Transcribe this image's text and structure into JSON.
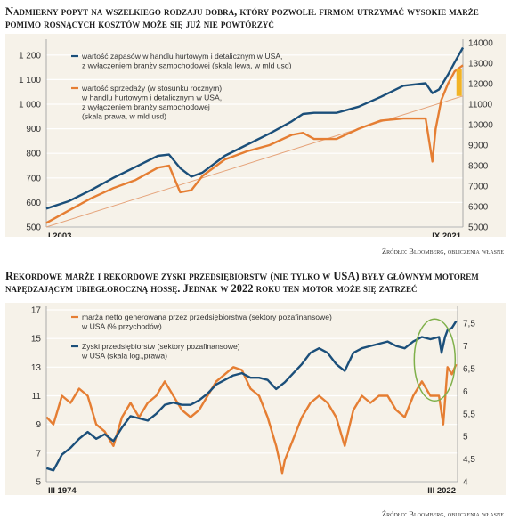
{
  "chart_data": [
    {
      "type": "line",
      "title": "Nadmierny popyt na wszelkiego rodzaju dobra, który pozwolił firmom utrzymać wysokie marże pomimo rosnących kosztów może się już nie powtórzyć",
      "x_start_label": "I 2003",
      "x_end_label": "IX 2021",
      "x_range": [
        2003.0,
        2021.67
      ],
      "y_left_ticks": [
        "500",
        "600",
        "700",
        "800",
        "900",
        "1 000",
        "1 100",
        "1 200"
      ],
      "y_left_range": [
        500,
        1250
      ],
      "y_right_ticks": [
        "5000",
        "6000",
        "7000",
        "8000",
        "9000",
        "10000",
        "11000",
        "12000",
        "13000",
        "14000"
      ],
      "y_right_range": [
        5000,
        14000
      ],
      "source": "Źródło: Bloomberg, obliczenia własne",
      "series": [
        {
          "name": "wartość zapasów w handlu hurtowym i detalicznym w USA, z wyłączeniem branży samochodowej (skala lewa, w mld usd)",
          "legend_lines": [
            "wartość zapasów w handlu hurtowym i detalicznym w USA,",
            "z wyłączeniem branży samochodowej (skala lewa, w mld usd)"
          ],
          "axis": "left",
          "color": "#1b4f7a",
          "x": [
            2003.0,
            2004.0,
            2005.0,
            2006.0,
            2007.0,
            2008.0,
            2008.5,
            2009.0,
            2009.5,
            2010.0,
            2011.0,
            2012.0,
            2013.0,
            2014.0,
            2014.5,
            2015.0,
            2016.0,
            2017.0,
            2018.0,
            2019.0,
            2020.0,
            2020.3,
            2020.6,
            2021.0,
            2021.3,
            2021.67
          ],
          "y": [
            575,
            605,
            650,
            700,
            745,
            790,
            795,
            740,
            705,
            722,
            790,
            835,
            880,
            930,
            960,
            965,
            965,
            990,
            1030,
            1075,
            1085,
            1045,
            1060,
            1120,
            1170,
            1230
          ]
        },
        {
          "name": "wartość sprzedaży (w stosunku rocznym) w handlu hurtowym i detalicznym w USA, z wyłączeniem branży samochodowej (skala prawa, w mld usd)",
          "legend_lines": [
            "wartość sprzedaży (w stosunku rocznym)",
            "w handlu hurtowym i detalicznym w USA,",
            "z wyłączeniem branży samochodowej",
            "(skala prawa, w mld usd)"
          ],
          "axis": "right",
          "color": "#e57e33",
          "x": [
            2003.0,
            2004.0,
            2005.0,
            2006.0,
            2007.0,
            2008.0,
            2008.5,
            2009.0,
            2009.5,
            2010.0,
            2011.0,
            2012.0,
            2013.0,
            2014.0,
            2014.5,
            2015.0,
            2016.0,
            2017.0,
            2018.0,
            2019.0,
            2020.0,
            2020.3,
            2020.45,
            2020.7,
            2021.0,
            2021.3,
            2021.67
          ],
          "y": [
            5200,
            5800,
            6400,
            6900,
            7300,
            7900,
            8000,
            6700,
            6800,
            7500,
            8300,
            8700,
            9000,
            9500,
            9600,
            9300,
            9300,
            9800,
            10200,
            10300,
            10300,
            8200,
            9800,
            11200,
            12000,
            12600,
            12900
          ]
        },
        {
          "name": "trend",
          "axis": "right",
          "color": "#e5a37a",
          "x": [
            2003.0,
            2021.67
          ],
          "y": [
            5000,
            11400
          ]
        }
      ],
      "highlight_bar": {
        "axis": "right",
        "x": 2021.5,
        "y": [
          11400,
          12700
        ],
        "color": "#f2b324"
      }
    },
    {
      "type": "line",
      "title": "Rekordowe marże i rekordowe zyski przedsiębiorstw (nie tylko w USA) były głównym motorem napędzającym ubiegłoroczną hossę. Jednak w 2022 roku ten motor może się zatrzeć",
      "x_start_label": "III 1974",
      "x_end_label": "III 2022",
      "x_range": [
        1974.17,
        2022.17
      ],
      "y_left_ticks": [
        "5",
        "7",
        "9",
        "11",
        "13",
        "15",
        "17"
      ],
      "y_left_range": [
        5,
        17
      ],
      "y_right_ticks": [
        "4",
        "4,5",
        "5",
        "5,5",
        "6",
        "6,5",
        "7",
        "7,5"
      ],
      "y_right_range": [
        4,
        7.8
      ],
      "source": "Źródło: Bloomberg, obliczenia własne",
      "series": [
        {
          "name": "marża netto generowana przez przedsiębiorstwa (sektory pozafinansowe) w USA (% przychodów)",
          "legend_lines": [
            "marża netto generowana przez przedsiębiorstwa (sektory pozafinansowe)",
            "w USA (% przychodów)"
          ],
          "axis": "left",
          "color": "#e57e33",
          "x": [
            1974.2,
            1975.0,
            1976.0,
            1977.0,
            1978.0,
            1979.0,
            1980.0,
            1981.0,
            1982.0,
            1983.0,
            1984.0,
            1985.0,
            1986.0,
            1987.0,
            1988.0,
            1989.0,
            1990.0,
            1991.0,
            1992.0,
            1993.0,
            1994.0,
            1995.0,
            1996.0,
            1997.0,
            1998.0,
            1999.0,
            2000.0,
            2001.0,
            2001.7,
            2002.0,
            2003.0,
            2004.0,
            2005.0,
            2006.0,
            2007.0,
            2008.0,
            2009.0,
            2010.0,
            2011.0,
            2012.0,
            2013.0,
            2014.0,
            2015.0,
            2016.0,
            2017.0,
            2018.0,
            2019.0,
            2020.0,
            2020.5,
            2021.0,
            2021.5,
            2022.0
          ],
          "y": [
            9.5,
            9.0,
            11.0,
            10.5,
            11.5,
            11.0,
            9.0,
            8.5,
            7.5,
            9.5,
            10.5,
            9.5,
            10.5,
            11.0,
            12.0,
            11.0,
            10.0,
            9.5,
            10.0,
            11.0,
            12.0,
            12.5,
            13.0,
            12.8,
            11.5,
            11.0,
            9.5,
            7.5,
            5.6,
            6.5,
            8.0,
            9.5,
            10.5,
            11.0,
            10.5,
            9.5,
            7.5,
            10.0,
            11.0,
            10.5,
            11.0,
            11.0,
            10.0,
            9.5,
            11.0,
            12.0,
            11.0,
            11.0,
            9.0,
            13.0,
            12.5,
            13.2
          ]
        },
        {
          "name": "Zyski przedsiębiorstw (sektory pozafinansowe) w USA (skala log.,prawa)",
          "legend_lines": [
            "Zyski przedsiębiorstw (sektory pozafinansowe)",
            "w USA (skala log.,prawa)"
          ],
          "axis": "right",
          "color": "#1b4f7a",
          "x": [
            1974.2,
            1975.0,
            1976.0,
            1977.0,
            1978.0,
            1979.0,
            1980.0,
            1981.0,
            1982.0,
            1983.0,
            1984.0,
            1985.0,
            1986.0,
            1987.0,
            1988.0,
            1989.0,
            1990.0,
            1991.0,
            1992.0,
            1993.0,
            1994.0,
            1995.0,
            1996.0,
            1997.0,
            1998.0,
            1999.0,
            2000.0,
            2001.0,
            2002.0,
            2003.0,
            2004.0,
            2005.0,
            2006.0,
            2007.0,
            2008.0,
            2009.0,
            2010.0,
            2011.0,
            2012.0,
            2013.0,
            2014.0,
            2015.0,
            2016.0,
            2017.0,
            2018.0,
            2019.0,
            2020.0,
            2020.3,
            2020.7,
            2021.0,
            2021.5,
            2022.0
          ],
          "y": [
            4.3,
            4.25,
            4.6,
            4.75,
            4.95,
            5.1,
            4.95,
            5.05,
            4.9,
            5.2,
            5.45,
            5.4,
            5.35,
            5.5,
            5.7,
            5.75,
            5.7,
            5.7,
            5.8,
            5.95,
            6.15,
            6.25,
            6.35,
            6.4,
            6.3,
            6.3,
            6.25,
            6.05,
            6.2,
            6.4,
            6.6,
            6.85,
            6.95,
            6.85,
            6.6,
            6.45,
            6.85,
            6.95,
            7.0,
            7.05,
            7.1,
            7.0,
            6.95,
            7.1,
            7.2,
            7.15,
            7.2,
            6.85,
            7.2,
            7.35,
            7.4,
            7.55
          ]
        }
      ],
      "highlight_ellipse": {
        "color": "#7fb04a",
        "x": 2019.5,
        "y_left": 13.5
      }
    }
  ]
}
